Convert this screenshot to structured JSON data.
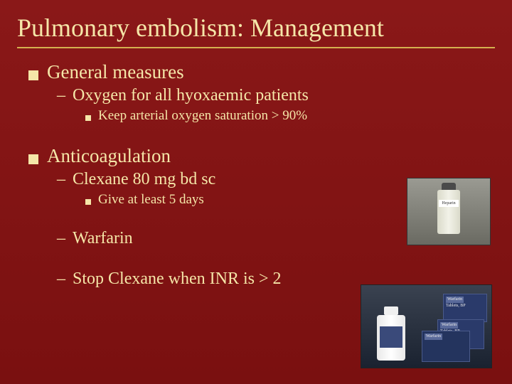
{
  "title": "Pulmonary embolism: Management",
  "colors": {
    "background_top": "#8a1818",
    "background_bottom": "#7a1010",
    "text": "#f5e6a8",
    "underline": "#d4b050"
  },
  "typography": {
    "title_fontsize": 36,
    "level1_fontsize": 27,
    "level2_fontsize": 24,
    "level3_fontsize": 19,
    "font_family": "Georgia"
  },
  "bullets": [
    {
      "level": 1,
      "text": "General measures",
      "children": [
        {
          "level": 2,
          "text": "Oxygen for all hyoxaemic patients",
          "children": [
            {
              "level": 3,
              "text": "Keep arterial oxygen saturation > 90%"
            }
          ]
        }
      ]
    },
    {
      "level": 1,
      "text": "Anticoagulation",
      "children": [
        {
          "level": 2,
          "text": "Clexane 80 mg bd sc",
          "children": [
            {
              "level": 3,
              "text": "Give at least 5 days"
            }
          ]
        },
        {
          "level": 2,
          "text": "Warfarin"
        },
        {
          "level": 2,
          "text": "Stop Clexane when INR is > 2"
        }
      ]
    }
  ],
  "images": {
    "vial": {
      "label": "Heparin"
    },
    "boxes": {
      "label1": "Warfarin",
      "label2": "Tablets, BP",
      "label3": "Warfarin"
    }
  }
}
